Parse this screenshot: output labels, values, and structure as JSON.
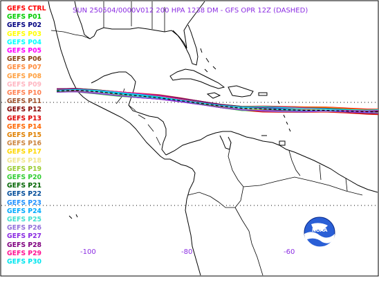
{
  "title": "SUN 250504/0000V012  200 HPA 1238 DM - GFS OPR 12Z (DASHED)",
  "legend": [
    {
      "label": "GEFS CTRL",
      "color": "#ff0000"
    },
    {
      "label": "GEFS P01",
      "color": "#00cc00"
    },
    {
      "label": "GEFS P02",
      "color": "#000080"
    },
    {
      "label": "GEFS P03",
      "color": "#ffff00"
    },
    {
      "label": "GEFS P04",
      "color": "#00ffff"
    },
    {
      "label": "GEFS P05",
      "color": "#ff00ff"
    },
    {
      "label": "GEFS P06",
      "color": "#8b4513"
    },
    {
      "label": "GEFS P07",
      "color": "#ff8c3c"
    },
    {
      "label": "GEFS P08",
      "color": "#ffa040"
    },
    {
      "label": "GEFS P09",
      "color": "#ffb6c1"
    },
    {
      "label": "GEFS P10",
      "color": "#ff7f50"
    },
    {
      "label": "GEFS P11",
      "color": "#a0522d"
    },
    {
      "label": "GEFS P12",
      "color": "#800000"
    },
    {
      "label": "GEFS P13",
      "color": "#dd0000"
    },
    {
      "label": "GEFS P14",
      "color": "#ff6600"
    },
    {
      "label": "GEFS P15",
      "color": "#e08000"
    },
    {
      "label": "GEFS P16",
      "color": "#cd853f"
    },
    {
      "label": "GEFS P17",
      "color": "#ffd700"
    },
    {
      "label": "GEFS P18",
      "color": "#f0e68c"
    },
    {
      "label": "GEFS P19",
      "color": "#9acd32"
    },
    {
      "label": "GEFS P20",
      "color": "#32cd32"
    },
    {
      "label": "GEFS P21",
      "color": "#006400"
    },
    {
      "label": "GEFS P22",
      "color": "#004c99"
    },
    {
      "label": "GEFS P23",
      "color": "#1e90ff"
    },
    {
      "label": "GEFS P24",
      "color": "#00aaff"
    },
    {
      "label": "GEFS P25",
      "color": "#40e0d0"
    },
    {
      "label": "GEFS P26",
      "color": "#9370db"
    },
    {
      "label": "GEFS P27",
      "color": "#8a2be2"
    },
    {
      "label": "GEFS P28",
      "color": "#800080"
    },
    {
      "label": "GEFS P29",
      "color": "#ff1493"
    },
    {
      "label": "GEFS P30",
      "color": "#00e5ee"
    }
  ],
  "lon_labels": [
    "-100",
    "-80",
    "-60"
  ],
  "logo": {
    "text": "NOAA",
    "icon": "noaa-logo-icon"
  }
}
